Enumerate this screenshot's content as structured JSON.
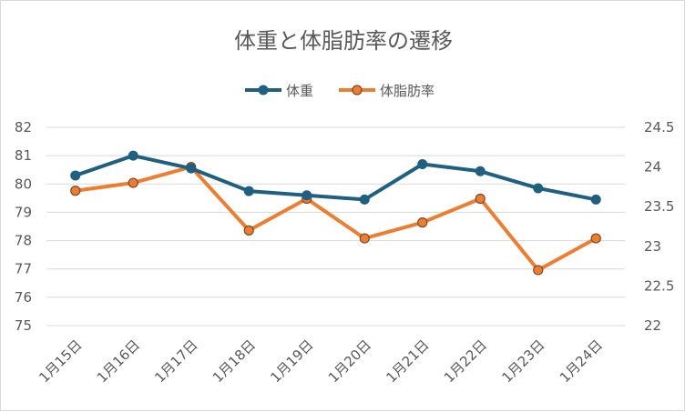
{
  "chart_data": {
    "type": "line",
    "title": "体重と体脂肪率の遷移",
    "categories": [
      "1月15日",
      "1月16日",
      "1月17日",
      "1月18日",
      "1月19日",
      "1月20日",
      "1月21日",
      "1月22日",
      "1月23日",
      "1月24日"
    ],
    "series": [
      {
        "name": "体重",
        "axis": "left",
        "color": "#1f5f7f",
        "values": [
          80.3,
          81.0,
          80.55,
          79.75,
          79.6,
          79.45,
          80.7,
          80.45,
          79.85,
          79.45
        ]
      },
      {
        "name": "体脂肪率",
        "axis": "right",
        "color": "#ed7d31",
        "values": [
          23.7,
          23.8,
          24.0,
          23.2,
          23.6,
          23.1,
          23.3,
          23.6,
          22.7,
          23.1
        ]
      }
    ],
    "y_left": {
      "min": 75,
      "max": 82,
      "ticks": [
        "75",
        "76",
        "77",
        "78",
        "79",
        "80",
        "81",
        "82"
      ]
    },
    "y_right": {
      "min": 22,
      "max": 24.5,
      "ticks": [
        "22",
        "22.5",
        "23",
        "23.5",
        "24",
        "24.5"
      ]
    },
    "grid": true,
    "legend_position": "top"
  }
}
